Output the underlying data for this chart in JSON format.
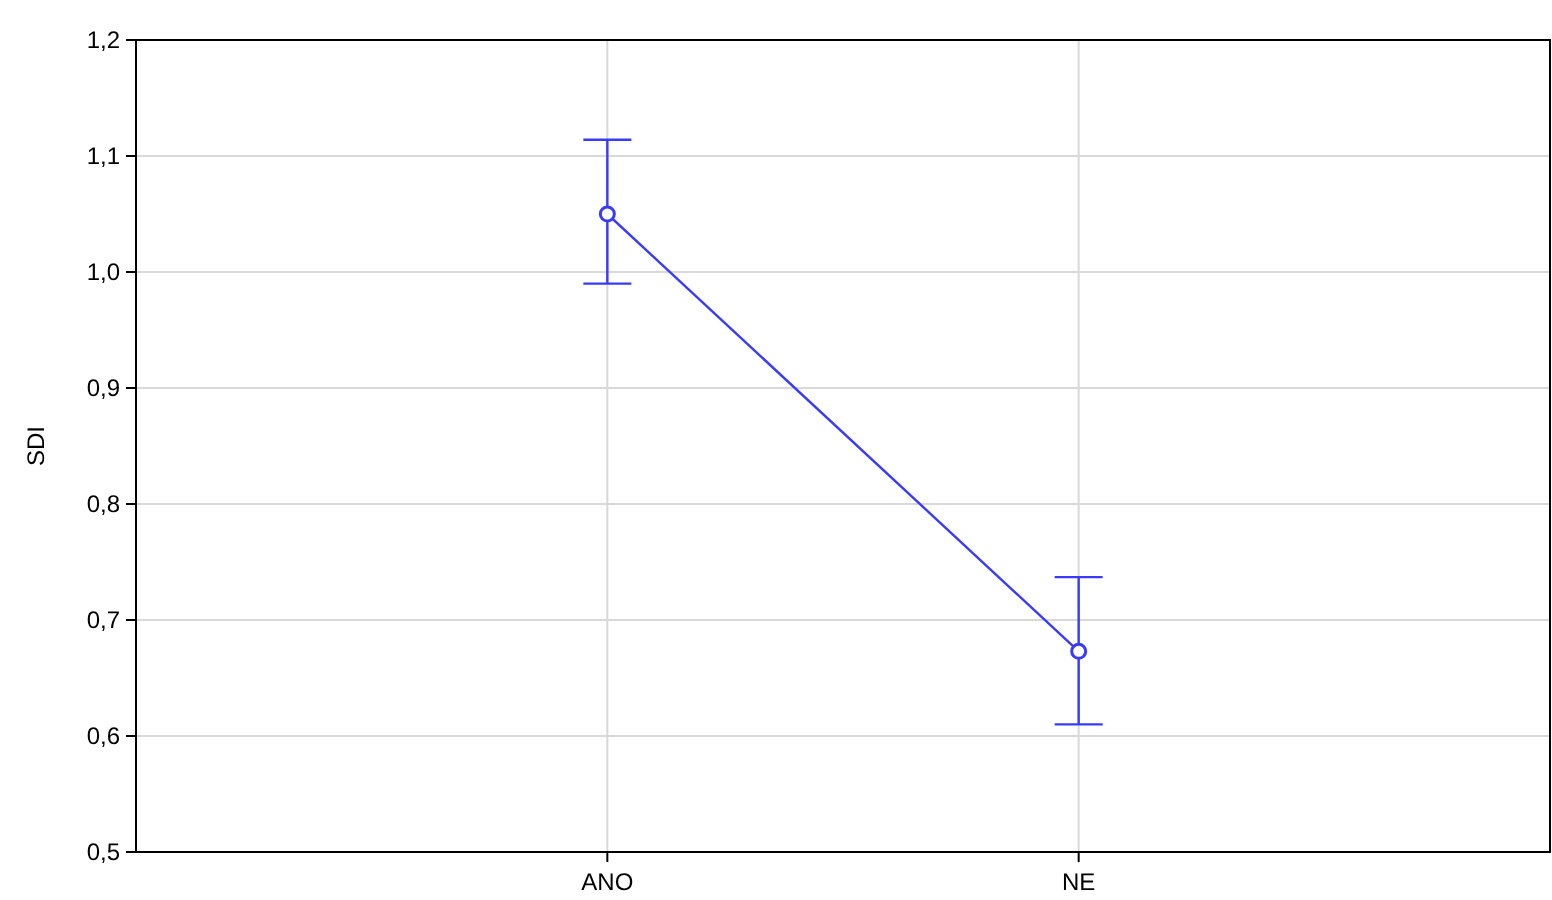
{
  "chart_data": {
    "type": "line",
    "ylabel": "SDI",
    "categories": [
      "ANO",
      "NE"
    ],
    "series": [
      {
        "color": "#3a3aff",
        "values": [
          1.05,
          0.673
        ],
        "errors": [
          [
            0.99,
            1.114
          ],
          [
            0.61,
            0.737
          ]
        ]
      }
    ],
    "ylim": [
      0.5,
      1.2
    ],
    "yticks": [
      {
        "value": 0.5,
        "label": "0,5"
      },
      {
        "value": 0.6,
        "label": "0,6"
      },
      {
        "value": 0.7,
        "label": "0,7"
      },
      {
        "value": 0.8,
        "label": "0,8"
      },
      {
        "value": 0.9,
        "label": "0,9"
      },
      {
        "value": 1.0,
        "label": "1,0"
      },
      {
        "value": 1.1,
        "label": "1,1"
      },
      {
        "value": 1.2,
        "label": "1,2"
      }
    ],
    "grid": true,
    "marker": "circle"
  }
}
